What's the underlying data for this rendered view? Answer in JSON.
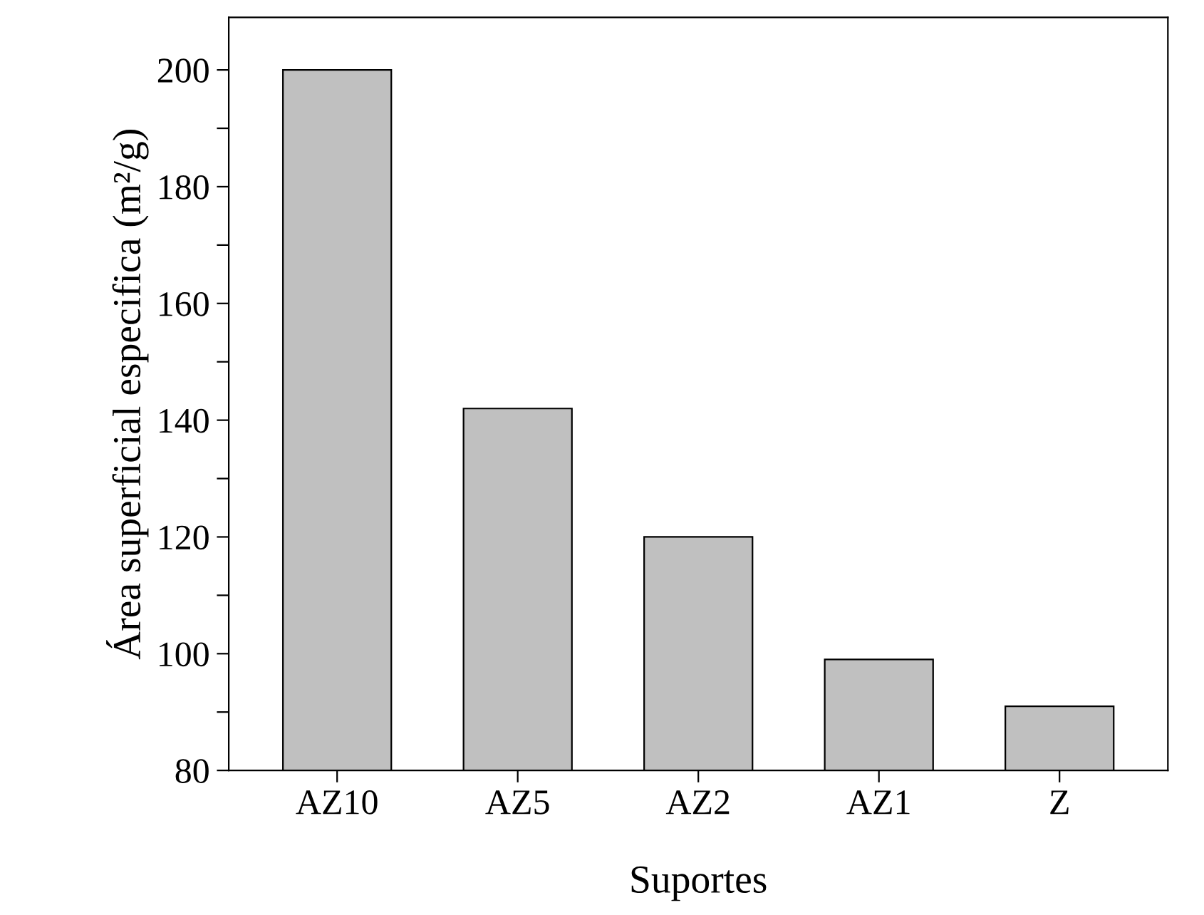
{
  "chart_data": {
    "type": "bar",
    "xlabel": "Suportes",
    "ylabel": "Área superficial especifica (m²/g)",
    "categories": [
      "AZ10",
      "AZ5",
      "AZ2",
      "AZ1",
      "Z"
    ],
    "values": [
      200,
      142,
      120,
      99,
      91
    ],
    "color": "#c0c0c0",
    "ylim": [
      80,
      209
    ],
    "yticks": [
      80,
      {
        "value": 90,
        "label": null
      },
      100,
      {
        "value": 110,
        "label": null
      },
      120,
      {
        "value": 130,
        "label": null
      },
      140,
      {
        "value": 150,
        "label": null
      },
      160,
      {
        "value": 170,
        "label": null
      },
      180,
      {
        "value": 190,
        "label": null
      },
      200
    ],
    "grid": false,
    "legend": false
  }
}
